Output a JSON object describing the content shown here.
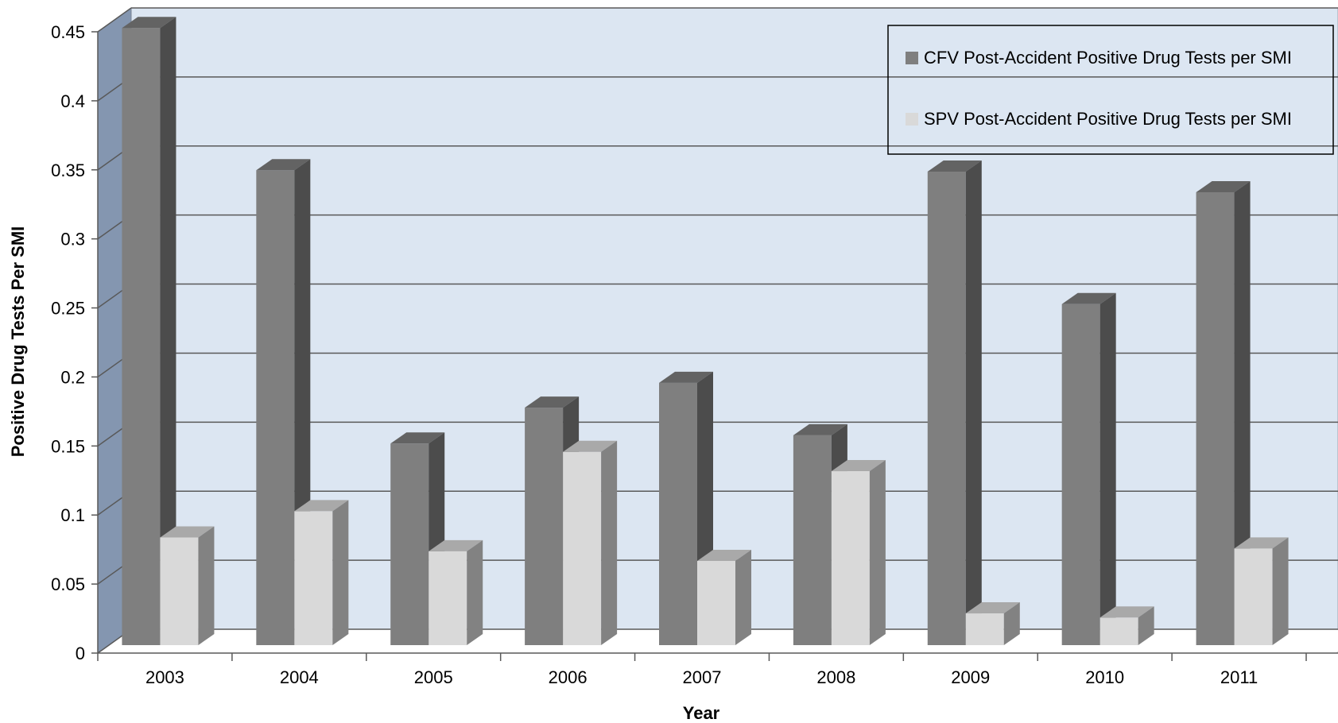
{
  "chart_data": {
    "type": "bar",
    "title": "",
    "xlabel": "Year",
    "ylabel": "Positive Drug Tests Per SMI",
    "categories": [
      "2003",
      "2004",
      "2005",
      "2006",
      "2007",
      "2008",
      "2009",
      "2010",
      "2011"
    ],
    "series": [
      {
        "name": "CFV Post-Accident Positive Drug Tests per SMI",
        "color": "#7f7f7f",
        "values": [
          0.447,
          0.344,
          0.146,
          0.172,
          0.19,
          0.152,
          0.343,
          0.247,
          0.328
        ]
      },
      {
        "name": "SPV Post-Accident Positive Drug Tests per SMI",
        "color": "#d9d9d9",
        "values": [
          0.078,
          0.097,
          0.068,
          0.14,
          0.061,
          0.126,
          0.023,
          0.02,
          0.07
        ]
      }
    ],
    "ylim": [
      0,
      0.45
    ],
    "yticks": [
      "0",
      "0.05",
      "0.1",
      "0.15",
      "0.2",
      "0.25",
      "0.3",
      "0.35",
      "0.4",
      "0.45"
    ],
    "grid": true,
    "legend_position": "top-right",
    "style": "3d-clustered-column",
    "colors": {
      "back_wall": "#dce6f2",
      "side_wall": "#8496b0",
      "floor": "#ffffff",
      "gridline": "#595959"
    }
  }
}
